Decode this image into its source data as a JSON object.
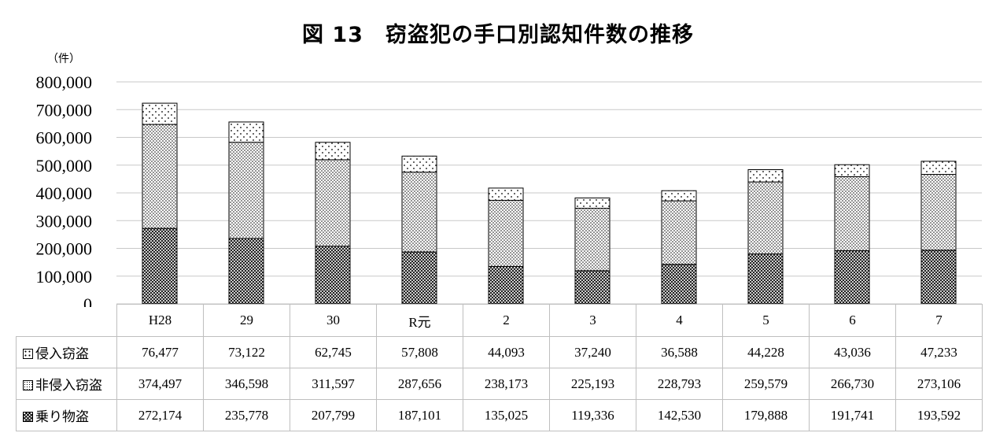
{
  "chart_data": {
    "type": "bar",
    "stacked": true,
    "title": "図 13　窃盗犯の手口別認知件数の推移",
    "unit_label": "（件）",
    "ylim": [
      0,
      800000
    ],
    "y_ticks": [
      "0",
      "100,000",
      "200,000",
      "300,000",
      "400,000",
      "500,000",
      "600,000",
      "700,000",
      "800,000"
    ],
    "grid": true,
    "legend": "table rows",
    "categories": [
      "H28",
      "29",
      "30",
      "R元",
      "2",
      "3",
      "4",
      "5",
      "6",
      "7"
    ],
    "series": [
      {
        "name": "乗り物盗",
        "pattern": "crosshatch",
        "values": [
          272174,
          235778,
          207799,
          187101,
          135025,
          119336,
          142530,
          179888,
          191741,
          193592
        ],
        "labels": [
          "272,174",
          "235,778",
          "207,799",
          "187,101",
          "135,025",
          "119,336",
          "142,530",
          "179,888",
          "191,741",
          "193,592"
        ]
      },
      {
        "name": "非侵入窃盗",
        "pattern": "dense-dots",
        "values": [
          374497,
          346598,
          311597,
          287656,
          238173,
          225193,
          228793,
          259579,
          266730,
          273106
        ],
        "labels": [
          "374,497",
          "346,598",
          "311,597",
          "287,656",
          "238,173",
          "225,193",
          "228,793",
          "259,579",
          "266,730",
          "273,106"
        ]
      },
      {
        "name": "侵入窃盗",
        "pattern": "sparse-dots",
        "values": [
          76477,
          73122,
          62745,
          57808,
          44093,
          37240,
          36588,
          44228,
          43036,
          47233
        ],
        "labels": [
          "76,477",
          "73,122",
          "62,745",
          "57,808",
          "44,093",
          "37,240",
          "36,588",
          "44,228",
          "43,036",
          "47,233"
        ]
      }
    ]
  },
  "table_row_order": [
    2,
    1,
    0
  ]
}
